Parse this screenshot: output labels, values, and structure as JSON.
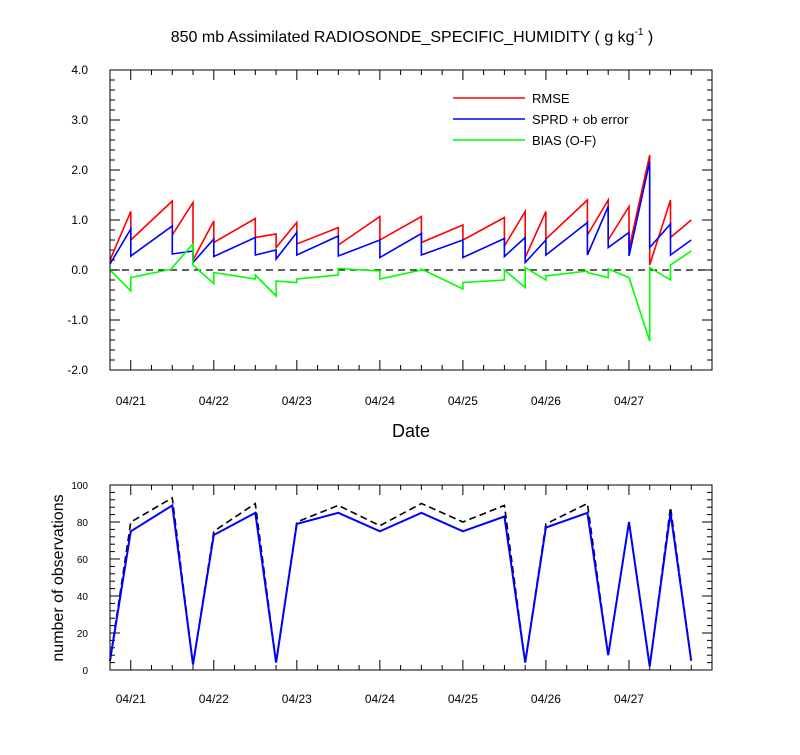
{
  "title": {
    "main": "850 mb Assimilated RADIOSONDE_SPECIFIC_HUMIDITY ( g kg",
    "sup": "-1",
    "close": " )"
  },
  "colors": {
    "rmse": "#ff0000",
    "sprd": "#0000ff",
    "bias": "#00ff00",
    "axis": "#000000",
    "obs_assim": "#0000ff",
    "obs_total": "#000000"
  },
  "chart_data": [
    {
      "type": "line",
      "xlabel": "Date",
      "ylabel": "",
      "ylim": [
        -2.0,
        4.0
      ],
      "xlim": [
        "04/20 18Z",
        "04/28 00Z"
      ],
      "y_ticks": [
        "4.0",
        "3.0",
        "2.0",
        "1.0",
        "0.0",
        "-1.0",
        "-2.0"
      ],
      "x_ticks": [
        "04/21",
        "04/22",
        "04/23",
        "04/24",
        "04/25",
        "04/26",
        "04/27"
      ],
      "legend": {
        "placement": "top-right",
        "entries": [
          "RMSE",
          "SPRD + ob error",
          "BIAS (O-F)"
        ]
      },
      "zero_line": "dashed",
      "series": [
        {
          "name": "RMSE",
          "points": [
            [
              "04/20 18Z",
              0.2
            ],
            [
              "04/21 00Z",
              1.17
            ],
            [
              "04/21 00Z",
              0.6
            ],
            [
              "04/21 12Z",
              1.38
            ],
            [
              "04/21 12Z",
              0.7
            ],
            [
              "04/21 18Z",
              1.35
            ],
            [
              "04/21 18Z",
              0.2
            ],
            [
              "04/22 00Z",
              0.98
            ],
            [
              "04/22 00Z",
              0.55
            ],
            [
              "04/22 12Z",
              1.03
            ],
            [
              "04/22 12Z",
              0.65
            ],
            [
              "04/22 18Z",
              0.72
            ],
            [
              "04/22 18Z",
              0.45
            ],
            [
              "04/23 00Z",
              0.95
            ],
            [
              "04/23 00Z",
              0.52
            ],
            [
              "04/23 12Z",
              0.85
            ],
            [
              "04/23 12Z",
              0.5
            ],
            [
              "04/24 00Z",
              1.07
            ],
            [
              "04/24 00Z",
              0.6
            ],
            [
              "04/24 12Z",
              1.07
            ],
            [
              "04/24 12Z",
              0.55
            ],
            [
              "04/25 00Z",
              0.9
            ],
            [
              "04/25 00Z",
              0.6
            ],
            [
              "04/25 12Z",
              1.05
            ],
            [
              "04/25 12Z",
              0.48
            ],
            [
              "04/25 18Z",
              1.17
            ],
            [
              "04/25 18Z",
              0.25
            ],
            [
              "04/26 00Z",
              1.17
            ],
            [
              "04/26 00Z",
              0.62
            ],
            [
              "04/26 12Z",
              1.4
            ],
            [
              "04/26 12Z",
              0.7
            ],
            [
              "04/26 18Z",
              1.4
            ],
            [
              "04/26 18Z",
              0.6
            ],
            [
              "04/27 00Z",
              1.27
            ],
            [
              "04/27 00Z",
              0.42
            ],
            [
              "04/27 06Z",
              2.3
            ],
            [
              "04/27 06Z",
              0.1
            ],
            [
              "04/27 12Z",
              1.4
            ],
            [
              "04/27 12Z",
              0.65
            ],
            [
              "04/27 18Z",
              1.0
            ]
          ]
        },
        {
          "name": "SPRD + ob error",
          "points": [
            [
              "04/20 18Z",
              0.12
            ],
            [
              "04/21 00Z",
              0.82
            ],
            [
              "04/21 00Z",
              0.28
            ],
            [
              "04/21 12Z",
              0.88
            ],
            [
              "04/21 12Z",
              0.32
            ],
            [
              "04/21 18Z",
              0.38
            ],
            [
              "04/21 18Z",
              0.15
            ],
            [
              "04/22 00Z",
              0.62
            ],
            [
              "04/22 00Z",
              0.27
            ],
            [
              "04/22 12Z",
              0.65
            ],
            [
              "04/22 12Z",
              0.3
            ],
            [
              "04/22 18Z",
              0.4
            ],
            [
              "04/22 18Z",
              0.22
            ],
            [
              "04/23 00Z",
              0.75
            ],
            [
              "04/23 00Z",
              0.3
            ],
            [
              "04/23 12Z",
              0.68
            ],
            [
              "04/23 12Z",
              0.28
            ],
            [
              "04/24 00Z",
              0.6
            ],
            [
              "04/24 00Z",
              0.25
            ],
            [
              "04/24 12Z",
              0.73
            ],
            [
              "04/24 12Z",
              0.3
            ],
            [
              "04/25 00Z",
              0.6
            ],
            [
              "04/25 00Z",
              0.25
            ],
            [
              "04/25 12Z",
              0.63
            ],
            [
              "04/25 12Z",
              0.27
            ],
            [
              "04/25 18Z",
              0.65
            ],
            [
              "04/25 18Z",
              0.15
            ],
            [
              "04/26 00Z",
              0.6
            ],
            [
              "04/26 00Z",
              0.3
            ],
            [
              "04/26 12Z",
              0.95
            ],
            [
              "04/26 12Z",
              0.3
            ],
            [
              "04/26 18Z",
              1.27
            ],
            [
              "04/26 18Z",
              0.45
            ],
            [
              "04/27 00Z",
              0.75
            ],
            [
              "04/27 00Z",
              0.28
            ],
            [
              "04/27 06Z",
              2.17
            ],
            [
              "04/27 06Z",
              0.45
            ],
            [
              "04/27 12Z",
              0.92
            ],
            [
              "04/27 12Z",
              0.3
            ],
            [
              "04/27 18Z",
              0.6
            ]
          ]
        },
        {
          "name": "BIAS (O-F)",
          "points": [
            [
              "04/20 18Z",
              0.0
            ],
            [
              "04/21 00Z",
              -0.42
            ],
            [
              "04/21 00Z",
              -0.15
            ],
            [
              "04/21 12Z",
              0.02
            ],
            [
              "04/21 12Z",
              0.05
            ],
            [
              "04/21 18Z",
              0.52
            ],
            [
              "04/21 18Z",
              0.1
            ],
            [
              "04/22 00Z",
              -0.27
            ],
            [
              "04/22 00Z",
              -0.05
            ],
            [
              "04/22 12Z",
              -0.18
            ],
            [
              "04/22 12Z",
              -0.1
            ],
            [
              "04/22 18Z",
              -0.52
            ],
            [
              "04/22 18Z",
              -0.22
            ],
            [
              "04/23 00Z",
              -0.25
            ],
            [
              "04/23 00Z",
              -0.18
            ],
            [
              "04/23 12Z",
              -0.1
            ],
            [
              "04/23 12Z",
              0.03
            ],
            [
              "04/24 00Z",
              -0.02
            ],
            [
              "04/24 00Z",
              -0.18
            ],
            [
              "04/24 12Z",
              0.0
            ],
            [
              "04/24 12Z",
              0.02
            ],
            [
              "04/25 00Z",
              -0.38
            ],
            [
              "04/25 00Z",
              -0.25
            ],
            [
              "04/25 12Z",
              -0.2
            ],
            [
              "04/25 12Z",
              0.0
            ],
            [
              "04/25 18Z",
              -0.35
            ],
            [
              "04/25 18Z",
              0.05
            ],
            [
              "04/26 00Z",
              -0.2
            ],
            [
              "04/26 00Z",
              -0.12
            ],
            [
              "04/26 12Z",
              -0.02
            ],
            [
              "04/26 12Z",
              -0.05
            ],
            [
              "04/26 18Z",
              -0.15
            ],
            [
              "04/26 18Z",
              0.02
            ],
            [
              "04/27 00Z",
              -0.15
            ],
            [
              "04/27 00Z",
              -0.15
            ],
            [
              "04/27 06Z",
              -1.42
            ],
            [
              "04/27 06Z",
              0.05
            ],
            [
              "04/27 12Z",
              -0.2
            ],
            [
              "04/27 12Z",
              0.1
            ],
            [
              "04/27 18Z",
              0.38
            ]
          ]
        }
      ]
    },
    {
      "type": "line",
      "xlabel": "",
      "ylabel": "number of observations",
      "ylim": [
        0,
        100
      ],
      "xlim": [
        "04/20 18Z",
        "04/28 00Z"
      ],
      "y_ticks": [
        "100",
        "80",
        "60",
        "40",
        "20",
        "0"
      ],
      "x_ticks": [
        "04/21",
        "04/22",
        "04/23",
        "04/24",
        "04/25",
        "04/26",
        "04/27"
      ],
      "series": [
        {
          "style": "dashed",
          "points": [
            [
              "04/20 18Z",
              5
            ],
            [
              "04/21 00Z",
              80
            ],
            [
              "04/21 12Z",
              93
            ],
            [
              "04/21 18Z",
              3
            ],
            [
              "04/22 00Z",
              75
            ],
            [
              "04/22 12Z",
              90
            ],
            [
              "04/22 18Z",
              4
            ],
            [
              "04/23 00Z",
              80
            ],
            [
              "04/23 12Z",
              89
            ],
            [
              "04/24 00Z",
              78
            ],
            [
              "04/24 12Z",
              90
            ],
            [
              "04/25 00Z",
              80
            ],
            [
              "04/25 12Z",
              89
            ],
            [
              "04/25 18Z",
              4
            ],
            [
              "04/26 00Z",
              79
            ],
            [
              "04/26 12Z",
              90
            ],
            [
              "04/26 18Z",
              8
            ],
            [
              "04/27 00Z",
              80
            ],
            [
              "04/27 06Z",
              2
            ],
            [
              "04/27 12Z",
              88
            ],
            [
              "04/27 18Z",
              5
            ]
          ]
        },
        {
          "style": "solid",
          "points": [
            [
              "04/20 18Z",
              5
            ],
            [
              "04/21 00Z",
              75
            ],
            [
              "04/21 12Z",
              89
            ],
            [
              "04/21 18Z",
              3
            ],
            [
              "04/22 00Z",
              73
            ],
            [
              "04/22 12Z",
              85
            ],
            [
              "04/22 18Z",
              4
            ],
            [
              "04/23 00Z",
              79
            ],
            [
              "04/23 12Z",
              85
            ],
            [
              "04/24 00Z",
              75
            ],
            [
              "04/24 12Z",
              85
            ],
            [
              "04/25 00Z",
              75
            ],
            [
              "04/25 12Z",
              83
            ],
            [
              "04/25 18Z",
              4
            ],
            [
              "04/26 00Z",
              77
            ],
            [
              "04/26 12Z",
              85
            ],
            [
              "04/26 18Z",
              8
            ],
            [
              "04/27 00Z",
              80
            ],
            [
              "04/27 06Z",
              2
            ],
            [
              "04/27 12Z",
              85
            ],
            [
              "04/27 18Z",
              5
            ]
          ]
        }
      ]
    }
  ]
}
